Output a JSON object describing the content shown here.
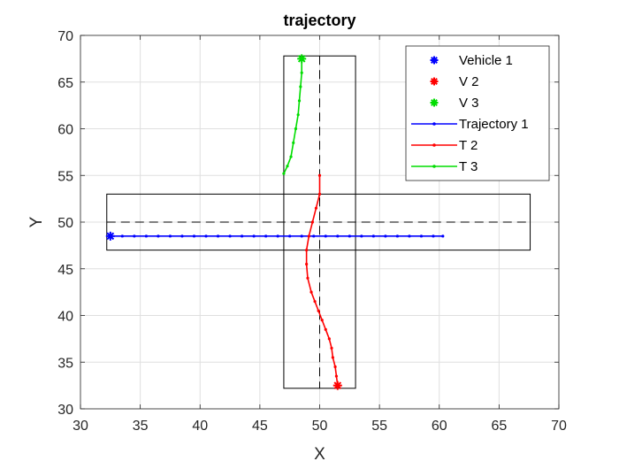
{
  "chart_data": {
    "type": "line",
    "title": "trajectory",
    "xlabel": "X",
    "ylabel": "Y",
    "xlim": [
      30,
      70
    ],
    "ylim": [
      30,
      70
    ],
    "xticks": [
      30,
      35,
      40,
      45,
      50,
      55,
      60,
      65,
      70
    ],
    "yticks": [
      30,
      35,
      40,
      45,
      50,
      55,
      60,
      65,
      70
    ],
    "grid": true,
    "legend_position": "top-right",
    "roads": {
      "horizontal": {
        "x": [
          32.2,
          67.6
        ],
        "y": [
          47.0,
          53.0
        ],
        "center_y": 50
      },
      "vertical": {
        "x": [
          47.0,
          53.0
        ],
        "y": [
          32.2,
          67.8
        ],
        "center_x": 50
      }
    },
    "vehicles": [
      {
        "name": "Vehicle 1",
        "color": "#0000ff",
        "x": 32.5,
        "y": 48.5
      },
      {
        "name": "V 2",
        "color": "#ff0000",
        "x": 51.5,
        "y": 32.5
      },
      {
        "name": "V 3",
        "color": "#00dd00",
        "x": 48.5,
        "y": 67.5
      }
    ],
    "series": [
      {
        "name": "Trajectory 1",
        "color": "#0000ff",
        "x": [
          32.5,
          33.5,
          34.5,
          35.5,
          36.5,
          37.5,
          38.5,
          39.5,
          40.5,
          41.5,
          42.5,
          43.5,
          44.5,
          45.5,
          46.5,
          47.5,
          48.5,
          49.5,
          50.5,
          51.5,
          52.5,
          53.5,
          54.5,
          55.5,
          56.5,
          57.5,
          58.5,
          59.5,
          60.3
        ],
        "y": [
          48.5,
          48.5,
          48.5,
          48.5,
          48.5,
          48.5,
          48.5,
          48.5,
          48.5,
          48.5,
          48.5,
          48.5,
          48.5,
          48.5,
          48.5,
          48.5,
          48.5,
          48.5,
          48.5,
          48.5,
          48.5,
          48.5,
          48.5,
          48.5,
          48.5,
          48.5,
          48.5,
          48.5,
          48.5
        ]
      },
      {
        "name": "T 2",
        "color": "#ff0000",
        "x": [
          51.5,
          51.4,
          51.3,
          51.1,
          51.0,
          50.8,
          50.5,
          50.2,
          49.9,
          49.6,
          49.3,
          49.0,
          48.9,
          48.9,
          49.1,
          49.4,
          49.7,
          50.0,
          50.0
        ],
        "y": [
          32.5,
          33.5,
          34.5,
          35.5,
          36.5,
          37.5,
          38.5,
          39.5,
          40.5,
          41.5,
          42.5,
          44.0,
          45.5,
          47.0,
          48.5,
          50.0,
          51.5,
          53.0,
          55.0
        ]
      },
      {
        "name": "T 3",
        "color": "#00dd00",
        "x": [
          48.5,
          48.5,
          48.4,
          48.3,
          48.2,
          48.0,
          47.8,
          47.6,
          47.3,
          47.0
        ],
        "y": [
          67.5,
          66.0,
          64.5,
          63.0,
          61.5,
          60.0,
          58.5,
          57.0,
          56.0,
          55.2
        ]
      }
    ]
  }
}
